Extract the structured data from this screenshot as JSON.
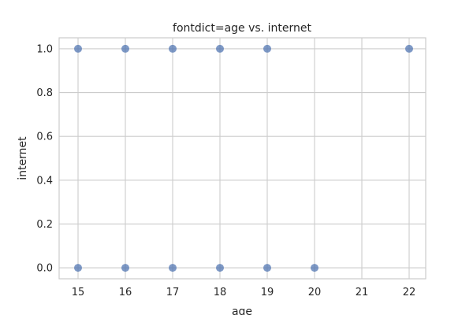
{
  "chart_data": {
    "type": "scatter",
    "title": "fontdict=age vs. internet",
    "xlabel": "age",
    "ylabel": "internet",
    "xlim": [
      14.6,
      22.35
    ],
    "ylim": [
      -0.05,
      1.05
    ],
    "xticks": [
      15,
      16,
      17,
      18,
      19,
      20,
      21,
      22
    ],
    "yticks": [
      0.0,
      0.2,
      0.4,
      0.6,
      0.8,
      1.0
    ],
    "ytick_labels": [
      "0.0",
      "0.2",
      "0.4",
      "0.6",
      "0.8",
      "1.0"
    ],
    "grid": true,
    "point_color": "#4c72b0",
    "points": [
      {
        "x": 15,
        "y": 1
      },
      {
        "x": 16,
        "y": 1
      },
      {
        "x": 17,
        "y": 1
      },
      {
        "x": 18,
        "y": 1
      },
      {
        "x": 19,
        "y": 1
      },
      {
        "x": 22,
        "y": 1
      },
      {
        "x": 15,
        "y": 0
      },
      {
        "x": 16,
        "y": 0
      },
      {
        "x": 17,
        "y": 0
      },
      {
        "x": 18,
        "y": 0
      },
      {
        "x": 19,
        "y": 0
      },
      {
        "x": 20,
        "y": 0
      }
    ]
  }
}
